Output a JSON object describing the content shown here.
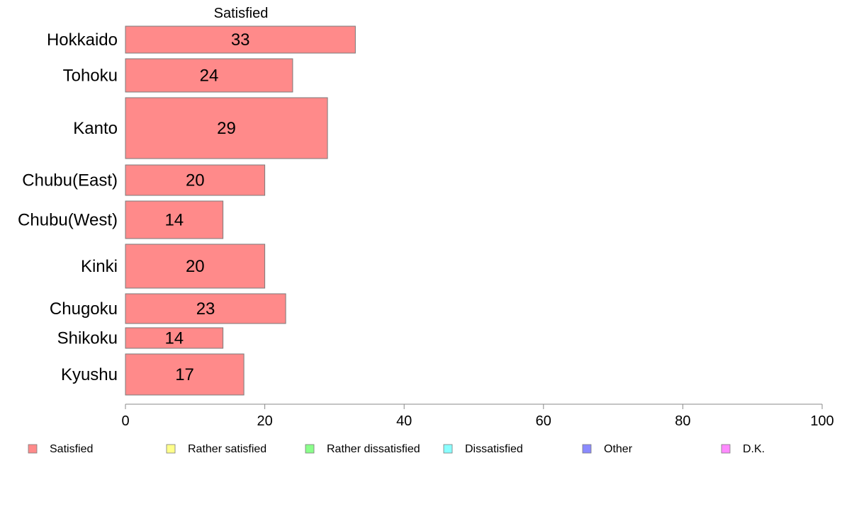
{
  "chart_data": {
    "type": "bar",
    "orientation": "horizontal",
    "title": "Satisfied",
    "categories": [
      "Hokkaido",
      "Tohoku",
      "Kanto",
      "Chubu(East)",
      "Chubu(West)",
      "Kinki",
      "Chugoku",
      "Shikoku",
      "Kyushu"
    ],
    "series": [
      {
        "name": "Satisfied",
        "values": [
          33,
          24,
          29,
          20,
          14,
          20,
          23,
          14,
          17
        ],
        "color": "#ff8a8a"
      }
    ],
    "data_labels": [
      "33",
      "24",
      "29",
      "20",
      "14",
      "20",
      "23",
      "14",
      "17"
    ],
    "xlim": [
      0,
      100
    ],
    "x_ticks": [
      0,
      20,
      40,
      60,
      80,
      100
    ],
    "grid": false,
    "legend_position": "bottom",
    "legend": [
      {
        "label": "Satisfied",
        "color": "#ff8a8a"
      },
      {
        "label": "Rather satisfied",
        "color": "#ffff8a"
      },
      {
        "label": "Rather dissatisfied",
        "color": "#8aff8a"
      },
      {
        "label": "Dissatisfied",
        "color": "#8affff"
      },
      {
        "label": "Other",
        "color": "#8a8aff"
      },
      {
        "label": "D.K.",
        "color": "#ff8aff"
      }
    ]
  }
}
